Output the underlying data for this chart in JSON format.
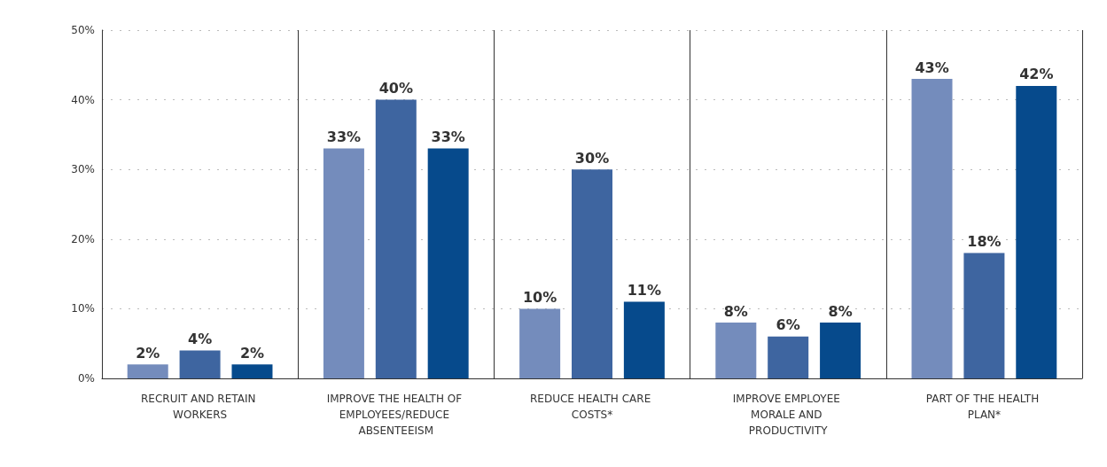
{
  "chart_data": {
    "type": "bar",
    "categories": [
      "RECRUIT AND RETAIN WORKERS",
      "IMPROVE THE HEALTH OF EMPLOYEES/REDUCE ABSENTEEISM",
      "REDUCE HEALTH CARE COSTS*",
      "IMPROVE EMPLOYEE MORALE AND PRODUCTIVITY",
      "PART OF THE HEALTH PLAN*"
    ],
    "series": [
      {
        "color": "#748cbc",
        "values": [
          2,
          33,
          10,
          8,
          43
        ],
        "value_labels": [
          "2%",
          "33%",
          "10%",
          "8%",
          "43%"
        ]
      },
      {
        "color": "#3e65a0",
        "values": [
          4,
          40,
          30,
          6,
          18
        ],
        "value_labels": [
          "4%",
          "40%",
          "30%",
          "6%",
          "18%"
        ]
      },
      {
        "color": "#064a8c",
        "values": [
          2,
          33,
          11,
          8,
          42
        ],
        "value_labels": [
          "2%",
          "33%",
          "11%",
          "8%",
          "42%"
        ]
      }
    ],
    "ylim": [
      0,
      50
    ],
    "yticks": [
      {
        "value": 0,
        "label": "0%"
      },
      {
        "value": 10,
        "label": "10%"
      },
      {
        "value": 20,
        "label": "20%"
      },
      {
        "value": 30,
        "label": "30%"
      },
      {
        "value": 40,
        "label": "40%"
      },
      {
        "value": 50,
        "label": "50%"
      }
    ],
    "grid": true
  }
}
